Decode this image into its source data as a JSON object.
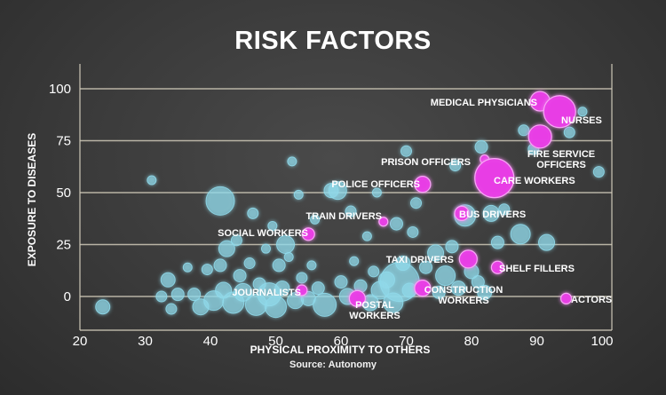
{
  "chart_data": {
    "type": "scatter",
    "title": "RISK FACTORS",
    "source": "Source: Autonomy",
    "xlabel": "PHYSICAL PROXIMITY TO OTHERS",
    "ylabel": "EXPOSURE TO DISEASES",
    "xlim": [
      20,
      103
    ],
    "ylim": [
      -8,
      110
    ],
    "x_ticks": [
      20,
      30,
      40,
      50,
      60,
      70,
      80,
      90,
      100
    ],
    "y_ticks": [
      0,
      25,
      50,
      75,
      100
    ],
    "grid": "horizontal",
    "colors": {
      "highlight": "#e93ee6",
      "other": "#8fd9ea",
      "grid": "#cfc9b8",
      "text": "#ffffff"
    },
    "highlighted": [
      {
        "label": "MEDICAL PHYSICIANS",
        "x": 90.5,
        "y": 94,
        "size": 11
      },
      {
        "label": "NURSES",
        "x": 93.5,
        "y": 89,
        "size": 18
      },
      {
        "label": "FIRE SERVICE OFFICERS",
        "x": 90.5,
        "y": 77,
        "size": 13
      },
      {
        "label": "PRISON OFFICERS",
        "x": 82,
        "y": 66,
        "size": 5
      },
      {
        "label": "CARE WORKERS",
        "x": 83.5,
        "y": 57,
        "size": 22
      },
      {
        "label": "POLICE OFFICERS",
        "x": 72.5,
        "y": 54,
        "size": 9
      },
      {
        "label": "BUS DRIVERS",
        "x": 78.5,
        "y": 40,
        "size": 8
      },
      {
        "label": "TRAIN DRIVERS",
        "x": 66.5,
        "y": 36,
        "size": 5
      },
      {
        "label": "SOCIAL WORKERS",
        "x": 55,
        "y": 30,
        "size": 7
      },
      {
        "label": "TAXI DRIVERS",
        "x": 79.5,
        "y": 18,
        "size": 10
      },
      {
        "label": "SHELF FILLERS",
        "x": 84,
        "y": 14,
        "size": 7
      },
      {
        "label": "JOURNALISTS",
        "x": 54,
        "y": 3,
        "size": 6
      },
      {
        "label": "CONSTRUCTION WORKERS",
        "x": 72.5,
        "y": 4,
        "size": 9
      },
      {
        "label": "POSTAL WORKERS",
        "x": 62.5,
        "y": -1,
        "size": 9
      },
      {
        "label": "ACTORS",
        "x": 94.5,
        "y": -1,
        "size": 6
      }
    ],
    "others": [
      {
        "x": 23.5,
        "y": -5,
        "size": 8
      },
      {
        "x": 31,
        "y": 56,
        "size": 5
      },
      {
        "x": 32.5,
        "y": 0,
        "size": 6
      },
      {
        "x": 33.5,
        "y": 8,
        "size": 8
      },
      {
        "x": 34,
        "y": -6,
        "size": 6
      },
      {
        "x": 35,
        "y": 1,
        "size": 7
      },
      {
        "x": 36.5,
        "y": 14,
        "size": 5
      },
      {
        "x": 37.5,
        "y": 1,
        "size": 7
      },
      {
        "x": 38.5,
        "y": -5,
        "size": 9
      },
      {
        "x": 39.5,
        "y": 13,
        "size": 6
      },
      {
        "x": 40.5,
        "y": -2,
        "size": 11
      },
      {
        "x": 41.5,
        "y": 46,
        "size": 16
      },
      {
        "x": 41.5,
        "y": 15,
        "size": 7
      },
      {
        "x": 42,
        "y": 3,
        "size": 9
      },
      {
        "x": 42.5,
        "y": 23,
        "size": 9
      },
      {
        "x": 43.5,
        "y": -3,
        "size": 12
      },
      {
        "x": 44,
        "y": 27,
        "size": 6
      },
      {
        "x": 44.5,
        "y": 10,
        "size": 7
      },
      {
        "x": 45,
        "y": 2,
        "size": 10
      },
      {
        "x": 46,
        "y": 16,
        "size": 6
      },
      {
        "x": 46.5,
        "y": 40,
        "size": 6
      },
      {
        "x": 47,
        "y": -4,
        "size": 12
      },
      {
        "x": 47.5,
        "y": 6,
        "size": 7
      },
      {
        "x": 48.5,
        "y": 23,
        "size": 5
      },
      {
        "x": 49,
        "y": 1,
        "size": 13
      },
      {
        "x": 49.5,
        "y": 34,
        "size": 5
      },
      {
        "x": 50,
        "y": -5,
        "size": 12
      },
      {
        "x": 50.5,
        "y": 15,
        "size": 7
      },
      {
        "x": 51,
        "y": 4,
        "size": 8
      },
      {
        "x": 51.5,
        "y": 25,
        "size": 10
      },
      {
        "x": 52,
        "y": 19,
        "size": 5
      },
      {
        "x": 52.5,
        "y": 65,
        "size": 5
      },
      {
        "x": 53,
        "y": -2,
        "size": 9
      },
      {
        "x": 53.5,
        "y": 49,
        "size": 5
      },
      {
        "x": 54,
        "y": 9,
        "size": 6
      },
      {
        "x": 55,
        "y": -1,
        "size": 8
      },
      {
        "x": 55.5,
        "y": 15,
        "size": 5
      },
      {
        "x": 56,
        "y": 37,
        "size": 5
      },
      {
        "x": 56.5,
        "y": 4,
        "size": 7
      },
      {
        "x": 57.5,
        "y": -4,
        "size": 13
      },
      {
        "x": 58.5,
        "y": 51,
        "size": 8
      },
      {
        "x": 59.5,
        "y": 51,
        "size": 10
      },
      {
        "x": 60,
        "y": 7,
        "size": 7
      },
      {
        "x": 61,
        "y": 0,
        "size": 9
      },
      {
        "x": 61.5,
        "y": 41,
        "size": 6
      },
      {
        "x": 62,
        "y": 17,
        "size": 5
      },
      {
        "x": 63,
        "y": 5,
        "size": 7
      },
      {
        "x": 64,
        "y": 29,
        "size": 5
      },
      {
        "x": 64.5,
        "y": -3,
        "size": 9
      },
      {
        "x": 65,
        "y": 12,
        "size": 6
      },
      {
        "x": 65.5,
        "y": 50,
        "size": 5
      },
      {
        "x": 66,
        "y": 3,
        "size": 10
      },
      {
        "x": 67,
        "y": 8,
        "size": 9
      },
      {
        "x": 68,
        "y": -3,
        "size": 11
      },
      {
        "x": 68.5,
        "y": 35,
        "size": 7
      },
      {
        "x": 69,
        "y": 7,
        "size": 22
      },
      {
        "x": 69.5,
        "y": 16,
        "size": 8
      },
      {
        "x": 70,
        "y": 70,
        "size": 6
      },
      {
        "x": 70.5,
        "y": 3,
        "size": 8
      },
      {
        "x": 71,
        "y": 31,
        "size": 6
      },
      {
        "x": 71.5,
        "y": 45,
        "size": 6
      },
      {
        "x": 73,
        "y": 14,
        "size": 7
      },
      {
        "x": 74.5,
        "y": 21,
        "size": 9
      },
      {
        "x": 75,
        "y": 2,
        "size": 7
      },
      {
        "x": 76,
        "y": 10,
        "size": 11
      },
      {
        "x": 77,
        "y": 24,
        "size": 7
      },
      {
        "x": 77.5,
        "y": 63,
        "size": 6
      },
      {
        "x": 78,
        "y": 4,
        "size": 8
      },
      {
        "x": 79,
        "y": 39,
        "size": 12
      },
      {
        "x": 80,
        "y": 12,
        "size": 8
      },
      {
        "x": 81,
        "y": 7,
        "size": 7
      },
      {
        "x": 81.5,
        "y": 72,
        "size": 7
      },
      {
        "x": 82,
        "y": 2,
        "size": 8
      },
      {
        "x": 83,
        "y": 40,
        "size": 9
      },
      {
        "x": 84,
        "y": 26,
        "size": 7
      },
      {
        "x": 85,
        "y": 42,
        "size": 6
      },
      {
        "x": 87.5,
        "y": 30,
        "size": 11
      },
      {
        "x": 88,
        "y": 80,
        "size": 6
      },
      {
        "x": 89.5,
        "y": 71,
        "size": 6
      },
      {
        "x": 91.5,
        "y": 26,
        "size": 9
      },
      {
        "x": 95,
        "y": 79,
        "size": 6
      },
      {
        "x": 97,
        "y": 89,
        "size": 5
      },
      {
        "x": 99.5,
        "y": 60,
        "size": 6
      }
    ]
  }
}
